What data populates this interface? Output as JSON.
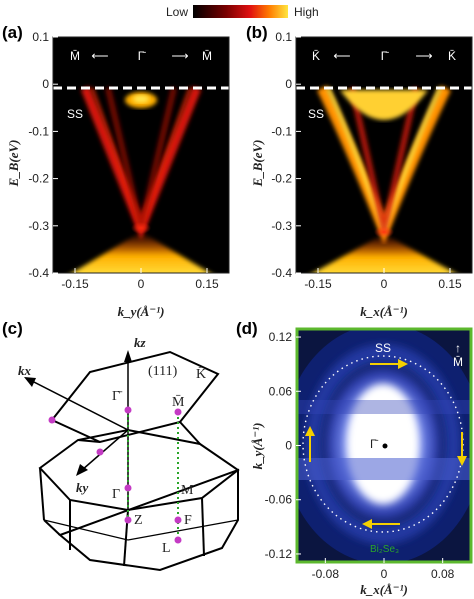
{
  "colorbar": {
    "low_label": "Low",
    "high_label": "High"
  },
  "panel_a": {
    "letter": "(a)",
    "direction_left": "M̄",
    "direction_center": "Γ̄",
    "direction_right": "M̄",
    "ss_label": "SS",
    "ylabel": "E_B(eV)",
    "xlabel": "k_y(Å⁻¹)"
  },
  "panel_b": {
    "letter": "(b)",
    "direction_left": "K̄",
    "direction_center": "Γ̄",
    "direction_right": "K̄",
    "ss_label": "SS",
    "ylabel": "E_B(eV)",
    "xlabel": "k_x(Å⁻¹)"
  },
  "panel_c": {
    "letter": "(c)",
    "kz": "kz",
    "kx": "kx",
    "ky": "ky",
    "surface": "(111)",
    "K_bar": "K̄",
    "Gamma_bar": "Γ̄",
    "M_bar": "M̄",
    "Gamma": "Γ",
    "M": "M",
    "Z": "Z",
    "F": "F",
    "L": "L"
  },
  "panel_d": {
    "letter": "(d)",
    "ss_label": "SS",
    "gamma_label": "Γ̄",
    "m_label": "M̄",
    "material": "Bi₂Se₃",
    "ylabel": "k_y(Å⁻¹)",
    "xlabel": "k_x(Å⁻¹)"
  },
  "colors": {
    "border_green": "#5cb82e",
    "arrow_yellow": "#f5d000",
    "marker_magenta": "#c43bc4",
    "dashed_green": "#2aa52a"
  },
  "chart_data": [
    {
      "type": "heatmap",
      "title": "(a)",
      "xlabel": "k_y(Å⁻¹)",
      "ylabel": "E_B(eV)",
      "xticks": [
        -0.15,
        0,
        0.15
      ],
      "yticks": [
        0.1,
        0,
        -0.1,
        -0.2,
        -0.3,
        -0.4
      ],
      "xlim": [
        -0.2,
        0.2
      ],
      "ylim": [
        -0.4,
        0.1
      ],
      "fermi_level": 0,
      "dirac_point_EB": -0.29
    },
    {
      "type": "heatmap",
      "title": "(b)",
      "xlabel": "k_x(Å⁻¹)",
      "ylabel": "E_B(eV)",
      "xticks": [
        -0.15,
        0,
        0.15
      ],
      "yticks": [
        0.1,
        0,
        -0.1,
        -0.2,
        -0.3,
        -0.4
      ],
      "xlim": [
        -0.2,
        0.2
      ],
      "ylim": [
        -0.4,
        0.1
      ],
      "fermi_level": 0,
      "dirac_point_EB": -0.29
    },
    {
      "type": "heatmap",
      "title": "(d)",
      "xlabel": "k_x(Å⁻¹)",
      "ylabel": "k_y(Å⁻¹)",
      "xticks": [
        -0.08,
        0,
        0.08
      ],
      "yticks": [
        0.12,
        0.06,
        0,
        -0.06,
        -0.12
      ],
      "xlim": [
        -0.12,
        0.12
      ],
      "ylim": [
        -0.13,
        0.13
      ]
    }
  ]
}
